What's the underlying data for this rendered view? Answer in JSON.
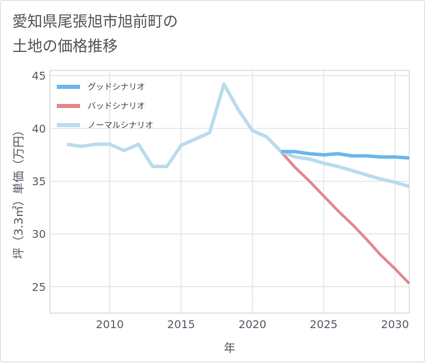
{
  "chart_data": {
    "type": "line",
    "title": "愛知県尾張旭市旭前町の\n土地の価格推移",
    "xlabel": "年",
    "ylabel": "坪（3.3㎡）単価（万円）",
    "xlim": [
      2005.8,
      2031
    ],
    "ylim": [
      22.5,
      45.5
    ],
    "xticks": [
      2010,
      2015,
      2020,
      2025,
      2030
    ],
    "yticks": [
      25,
      30,
      35,
      40,
      45
    ],
    "grid": true,
    "legend_position": "top-left",
    "series": [
      {
        "name": "グッドシナリオ",
        "color": "#6cb6ec",
        "x": [
          2022,
          2023,
          2024,
          2025,
          2026,
          2027,
          2028,
          2029,
          2030,
          2031
        ],
        "y": [
          37.8,
          37.8,
          37.6,
          37.5,
          37.6,
          37.4,
          37.4,
          37.3,
          37.3,
          37.2
        ]
      },
      {
        "name": "バッドシナリオ",
        "color": "#e0888e",
        "x": [
          2022,
          2023,
          2024,
          2025,
          2026,
          2027,
          2028,
          2029,
          2030,
          2031
        ],
        "y": [
          37.8,
          36.3,
          35.0,
          33.6,
          32.2,
          30.9,
          29.5,
          28.0,
          26.7,
          25.3
        ]
      },
      {
        "name": "ノーマルシナリオ",
        "color": "#b9dcec",
        "x": [
          2007,
          2008,
          2009,
          2010,
          2011,
          2012,
          2013,
          2014,
          2015,
          2016,
          2017,
          2018,
          2019,
          2020,
          2021,
          2022,
          2023,
          2024,
          2025,
          2026,
          2027,
          2028,
          2029,
          2030,
          2031
        ],
        "y": [
          38.5,
          38.3,
          38.5,
          38.5,
          37.9,
          38.5,
          36.4,
          36.4,
          38.4,
          39.0,
          39.6,
          44.2,
          41.8,
          39.8,
          39.2,
          37.8,
          37.3,
          37.1,
          36.7,
          36.4,
          36.0,
          35.6,
          35.2,
          34.9,
          34.5
        ]
      }
    ]
  }
}
